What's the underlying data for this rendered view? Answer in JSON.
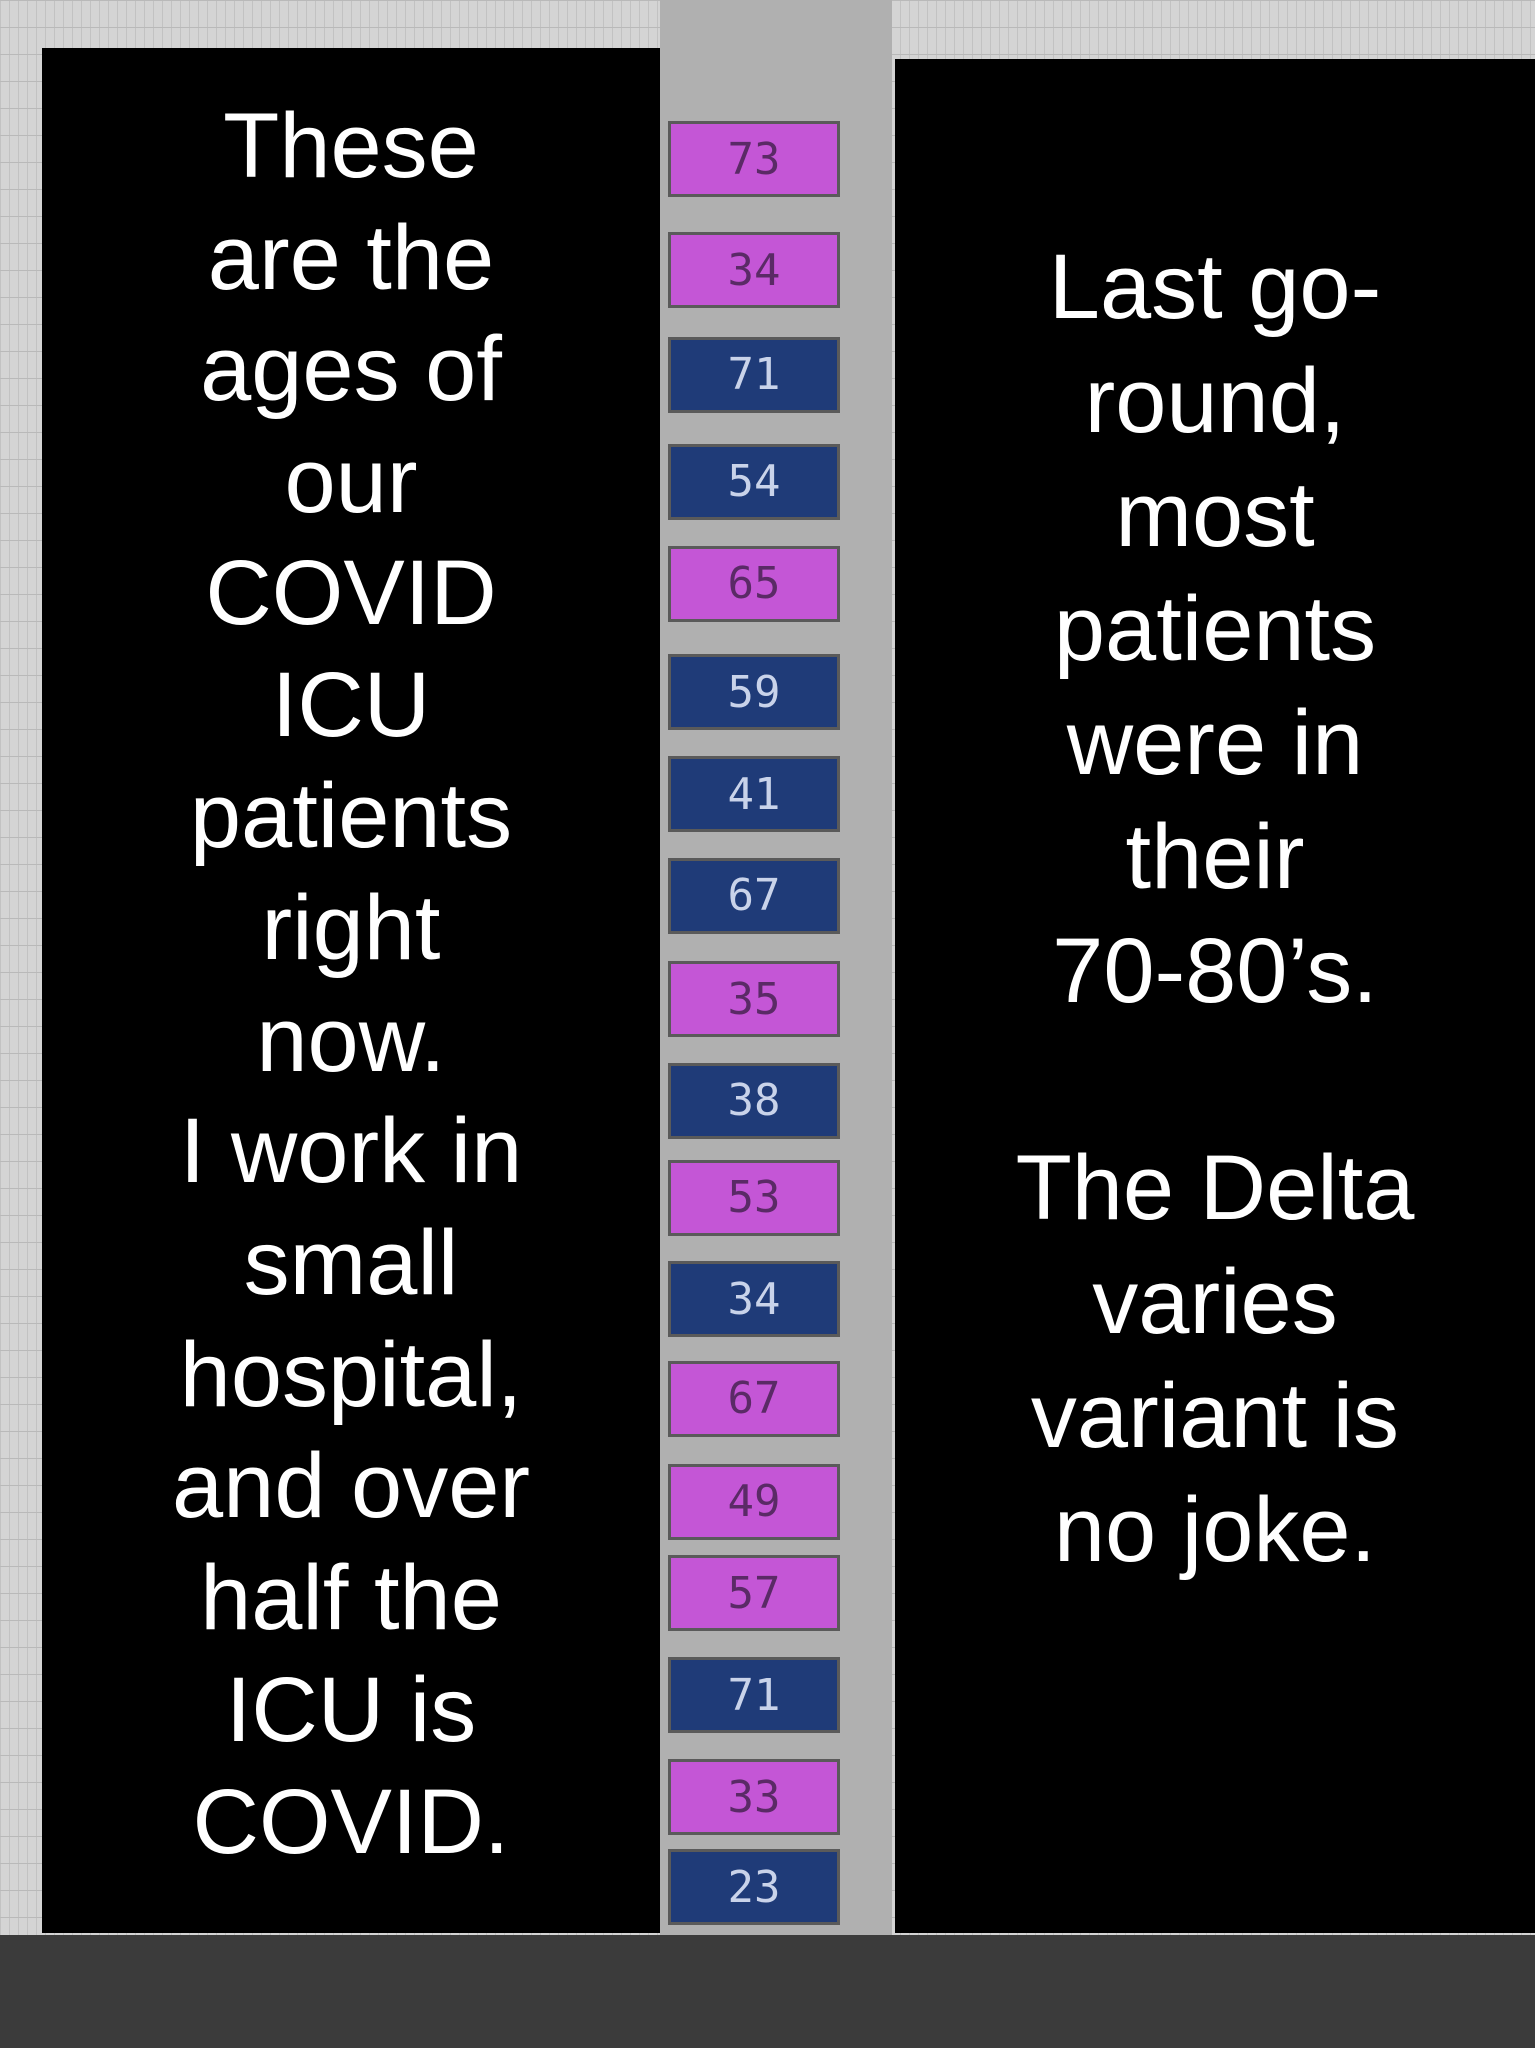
{
  "left_panel": {
    "lines": [
      "These",
      "are the",
      "ages of",
      "our",
      "COVID",
      "ICU",
      "patients",
      "right",
      "now.",
      "I work in",
      "small",
      "hospital,",
      "and over",
      "half the",
      "ICU is",
      "COVID."
    ]
  },
  "right_panel": {
    "paragraphs": [
      [
        "Last go-",
        "round,",
        "most",
        "patients",
        "were in",
        "their",
        "70-80’s."
      ],
      [
        "The Delta",
        "varies",
        "variant is",
        "no joke."
      ]
    ]
  },
  "age_column": {
    "colors": {
      "pink": "#c456d6",
      "blue": "#1f3b78"
    },
    "cells": [
      {
        "value": 73,
        "color": "pink"
      },
      {
        "value": 34,
        "color": "pink"
      },
      {
        "value": 71,
        "color": "blue"
      },
      {
        "value": 54,
        "color": "blue"
      },
      {
        "value": 65,
        "color": "pink"
      },
      {
        "value": 59,
        "color": "blue"
      },
      {
        "value": 41,
        "color": "blue"
      },
      {
        "value": 67,
        "color": "blue"
      },
      {
        "value": 35,
        "color": "pink"
      },
      {
        "value": 38,
        "color": "blue"
      },
      {
        "value": 53,
        "color": "pink"
      },
      {
        "value": 34,
        "color": "blue"
      },
      {
        "value": 67,
        "color": "pink"
      },
      {
        "value": 49,
        "color": "pink"
      },
      {
        "value": 57,
        "color": "pink"
      },
      {
        "value": 71,
        "color": "blue"
      },
      {
        "value": 33,
        "color": "pink"
      },
      {
        "value": 23,
        "color": "blue"
      }
    ]
  }
}
